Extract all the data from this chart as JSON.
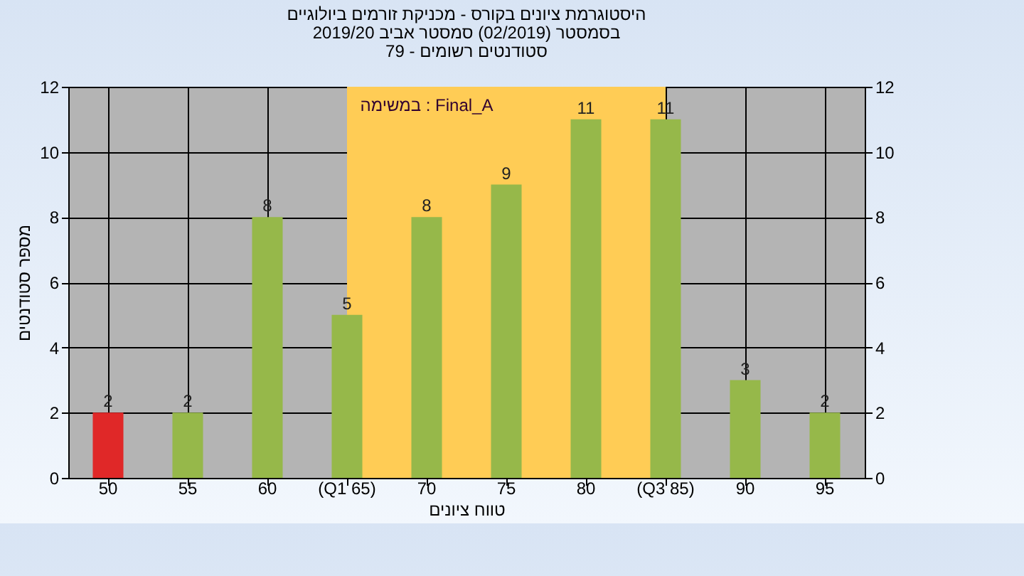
{
  "chart_data": {
    "type": "bar",
    "title": [
      "היסטוגרמת ציונים בקורס - מכניקת זורמים ביולוגיים",
      "בסמסטר  (02/2019)  סמסטר אביב 2019/20",
      "סטודנטים רשומים - 79"
    ],
    "xlabel": "טווח ציונים",
    "ylabel": "מספר סטודנטים",
    "annotations": [
      "במשימה : Final_A"
    ],
    "categories": [
      "50",
      "55",
      "60",
      "(Q1 65)",
      "70",
      "75",
      "80",
      "(Q3 85)",
      "90",
      "95"
    ],
    "values": [
      2,
      2,
      8,
      5,
      8,
      9,
      11,
      11,
      3,
      2
    ],
    "colors": [
      "#e02828",
      "#96b84a",
      "#96b84a",
      "#96b84a",
      "#96b84a",
      "#96b84a",
      "#96b84a",
      "#96b84a",
      "#96b84a",
      "#96b84a"
    ],
    "ylim": [
      0,
      12
    ],
    "yticks": [
      0,
      2,
      4,
      6,
      8,
      10,
      12
    ],
    "y2lim": [
      0,
      12
    ],
    "y2ticks": [
      0,
      2,
      4,
      6,
      8,
      10,
      12
    ],
    "bands": [
      {
        "axis": "x",
        "from": "(Q1 65)",
        "to": "(Q3 85)",
        "color": "#ffcc55"
      }
    ],
    "grid": true,
    "data_labels": true,
    "legend": false
  }
}
